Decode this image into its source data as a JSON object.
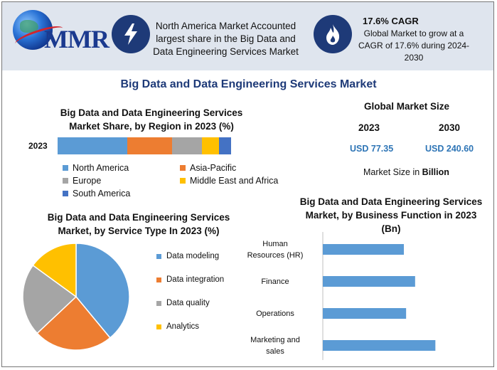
{
  "header": {
    "logo_text": "MMR",
    "highlight_1": "North America Market Accounted largest share in the Big Data and Data Engineering Services Market",
    "cagr_title": "17.6% CAGR",
    "cagr_text": "Global Market to grow at a CAGR of 17.6% during 2024-2030",
    "icon_1": "lightning-bolt-icon",
    "icon_2": "flame-icon"
  },
  "main_title": "Big Data and Data Engineering Services Market",
  "global_market_size": {
    "title": "Global Market Size",
    "year_a": "2023",
    "year_b": "2030",
    "value_a": "USD 77.35",
    "value_b": "USD 240.60",
    "note_prefix": "Market Size in ",
    "note_unit": "Billion"
  },
  "colors": {
    "blue": "#5b9bd5",
    "orange": "#ed7d31",
    "gray": "#a5a5a5",
    "yellow": "#ffc000",
    "darkblue": "#4472c4",
    "navy": "#1e3a78"
  },
  "chart_data": [
    {
      "type": "bar",
      "stacked": true,
      "orientation": "horizontal",
      "title": "Big Data and Data Engineering Services Market Share, by Region in 2023 (%)",
      "categories": [
        "2023"
      ],
      "series": [
        {
          "name": "North America",
          "values": [
            40
          ],
          "color": "#5b9bd5"
        },
        {
          "name": "Asia-Pacific",
          "values": [
            26
          ],
          "color": "#ed7d31"
        },
        {
          "name": "Europe",
          "values": [
            17
          ],
          "color": "#a5a5a5"
        },
        {
          "name": "Middle East and Africa",
          "values": [
            10
          ],
          "color": "#ffc000"
        },
        {
          "name": "South America",
          "values": [
            7
          ],
          "color": "#4472c4"
        }
      ],
      "legend": "bottom",
      "grid": false
    },
    {
      "type": "pie",
      "title": "Big Data and Data Engineering Services Market, by Service Type In 2023 (%)",
      "labels": [
        "Data modeling",
        "Data integration",
        "Data quality",
        "Analytics"
      ],
      "values": [
        39,
        24,
        22,
        15
      ],
      "colors": [
        "#5b9bd5",
        "#ed7d31",
        "#a5a5a5",
        "#ffc000"
      ],
      "legend": "right"
    },
    {
      "type": "bar",
      "orientation": "horizontal",
      "title": "Big Data and Data Engineering Services Market, by Business Function in 2023 (Bn)",
      "categories": [
        "Human Resources (HR)",
        "Finance",
        "Operations",
        "Marketing and sales"
      ],
      "values": [
        18,
        20.5,
        18.5,
        25
      ],
      "xlim": [
        0,
        30
      ],
      "color": "#5b9bd5",
      "grid": false
    }
  ]
}
